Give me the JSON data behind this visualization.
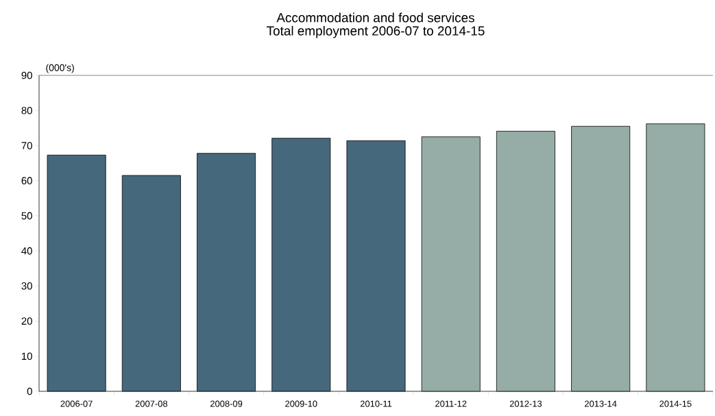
{
  "chart_data": {
    "type": "bar",
    "title": "Accommodation and food services",
    "subtitle": "Total employment 2006-07 to 2014-15",
    "ylabel": "(000's)",
    "categories": [
      "2006-07",
      "2007-08",
      "2008-09",
      "2009-10",
      "2010-11",
      "2011-12",
      "2012-13",
      "2013-14",
      "2014-15"
    ],
    "values": [
      67.3,
      61.5,
      67.8,
      72.1,
      71.4,
      72.5,
      74.1,
      75.5,
      76.2
    ],
    "colors": [
      "#46687c",
      "#46687c",
      "#46687c",
      "#46687c",
      "#46687c",
      "#96aca6",
      "#96aca6",
      "#96aca6",
      "#96aca6"
    ],
    "ylim": [
      0,
      90
    ],
    "yticks": [
      0,
      10,
      20,
      30,
      40,
      50,
      60,
      70,
      80,
      90
    ],
    "grid": false
  }
}
